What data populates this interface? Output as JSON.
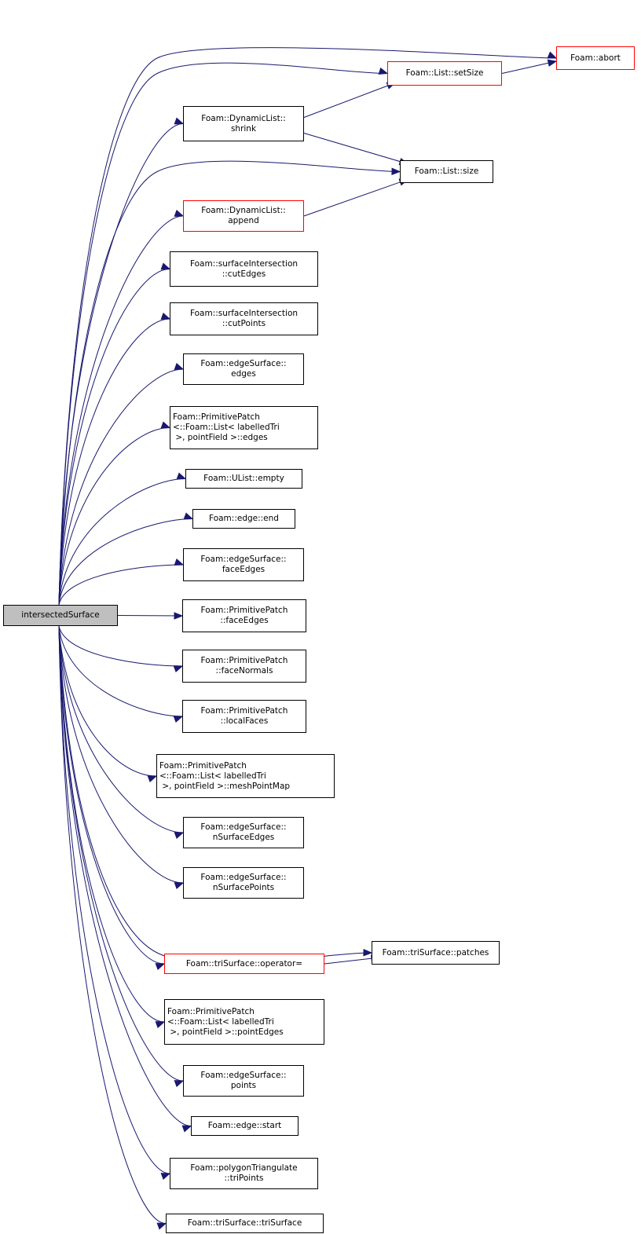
{
  "colors": {
    "edge": "#191970",
    "node_border": "#000000",
    "truncated_border": "#ff0000",
    "root_fill": "#bfbfbf"
  },
  "root": {
    "label": "intersectedSurface"
  },
  "nodes": [
    {
      "id": "abort",
      "label": "Foam::abort",
      "truncated": true
    },
    {
      "id": "setSize",
      "label": "Foam::List::setSize",
      "truncated": true
    },
    {
      "id": "shrink",
      "label": "Foam::DynamicList::\nshrink",
      "truncated": false
    },
    {
      "id": "size",
      "label": "Foam::List::size",
      "truncated": false
    },
    {
      "id": "append",
      "label": "Foam::DynamicList::\nappend",
      "truncated": true
    },
    {
      "id": "cutEdges",
      "label": "Foam::surfaceIntersection\n::cutEdges",
      "truncated": false
    },
    {
      "id": "cutPoints",
      "label": "Foam::surfaceIntersection\n::cutPoints",
      "truncated": false
    },
    {
      "id": "esEdges",
      "label": "Foam::edgeSurface::\nedges",
      "truncated": false
    },
    {
      "id": "ppEdges",
      "label": "Foam::PrimitivePatch\n<::Foam::List< labelledTri\n >, pointField >::edges",
      "truncated": false
    },
    {
      "id": "empty",
      "label": "Foam::UList::empty",
      "truncated": false
    },
    {
      "id": "end",
      "label": "Foam::edge::end",
      "truncated": false
    },
    {
      "id": "esFaceEdges",
      "label": "Foam::edgeSurface::\nfaceEdges",
      "truncated": false
    },
    {
      "id": "ppFaceEdges",
      "label": "Foam::PrimitivePatch\n::faceEdges",
      "truncated": false
    },
    {
      "id": "faceNormals",
      "label": "Foam::PrimitivePatch\n::faceNormals",
      "truncated": false
    },
    {
      "id": "localFaces",
      "label": "Foam::PrimitivePatch\n::localFaces",
      "truncated": false
    },
    {
      "id": "meshPointMap",
      "label": "Foam::PrimitivePatch\n<::Foam::List< labelledTri\n >, pointField >::meshPointMap",
      "truncated": false
    },
    {
      "id": "nSurfaceEdges",
      "label": "Foam::edgeSurface::\nnSurfaceEdges",
      "truncated": false
    },
    {
      "id": "nSurfacePoints",
      "label": "Foam::edgeSurface::\nnSurfacePoints",
      "truncated": false
    },
    {
      "id": "patches",
      "label": "Foam::triSurface::patches",
      "truncated": false
    },
    {
      "id": "operatorEq",
      "label": "Foam::triSurface::operator=",
      "truncated": true
    },
    {
      "id": "pointEdges",
      "label": "Foam::PrimitivePatch\n<::Foam::List< labelledTri\n >, pointField >::pointEdges",
      "truncated": false
    },
    {
      "id": "points",
      "label": "Foam::edgeSurface::\npoints",
      "truncated": false
    },
    {
      "id": "start",
      "label": "Foam::edge::start",
      "truncated": false
    },
    {
      "id": "triPoints",
      "label": "Foam::polygonTriangulate\n::triPoints",
      "truncated": false
    },
    {
      "id": "triSurface",
      "label": "Foam::triSurface::triSurface",
      "truncated": false
    }
  ],
  "edges": [
    [
      "root",
      "abort"
    ],
    [
      "root",
      "setSize"
    ],
    [
      "root",
      "shrink"
    ],
    [
      "root",
      "size"
    ],
    [
      "root",
      "append"
    ],
    [
      "root",
      "cutEdges"
    ],
    [
      "root",
      "cutPoints"
    ],
    [
      "root",
      "esEdges"
    ],
    [
      "root",
      "ppEdges"
    ],
    [
      "root",
      "empty"
    ],
    [
      "root",
      "end"
    ],
    [
      "root",
      "esFaceEdges"
    ],
    [
      "root",
      "ppFaceEdges"
    ],
    [
      "root",
      "faceNormals"
    ],
    [
      "root",
      "localFaces"
    ],
    [
      "root",
      "meshPointMap"
    ],
    [
      "root",
      "nSurfaceEdges"
    ],
    [
      "root",
      "nSurfacePoints"
    ],
    [
      "root",
      "patches"
    ],
    [
      "root",
      "operatorEq"
    ],
    [
      "root",
      "pointEdges"
    ],
    [
      "root",
      "points"
    ],
    [
      "root",
      "start"
    ],
    [
      "root",
      "triPoints"
    ],
    [
      "root",
      "triSurface"
    ],
    [
      "setSize",
      "abort"
    ],
    [
      "shrink",
      "setSize"
    ],
    [
      "shrink",
      "size"
    ],
    [
      "append",
      "size"
    ],
    [
      "operatorEq",
      "patches"
    ]
  ]
}
